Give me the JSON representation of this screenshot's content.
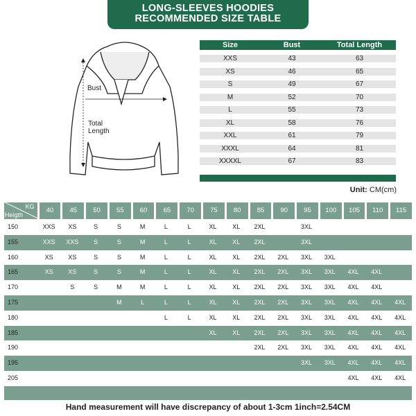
{
  "title": {
    "line1": "LONG-SLEEVES HOODIES",
    "line2": "RECOMMENDED SIZE TABLE"
  },
  "illustration": {
    "bust_label": "Bust",
    "length_label": "Total Length"
  },
  "size_table": {
    "headers": [
      "Size",
      "Bust",
      "Total Length"
    ],
    "rows": [
      [
        "XXS",
        "43",
        "63"
      ],
      [
        "XS",
        "46",
        "65"
      ],
      [
        "S",
        "49",
        "67"
      ],
      [
        "M",
        "52",
        "70"
      ],
      [
        "L",
        "55",
        "73"
      ],
      [
        "XL",
        "58",
        "76"
      ],
      [
        "XXL",
        "61",
        "79"
      ],
      [
        "XXXL",
        "64",
        "81"
      ],
      [
        "XXXXL",
        "67",
        "83"
      ]
    ]
  },
  "unit": {
    "label": "Unit:",
    "value": "CM(cm)"
  },
  "fit_table": {
    "kg_label": "KG",
    "height_label": "Heigth",
    "weights": [
      "40",
      "45",
      "50",
      "55",
      "60",
      "65",
      "70",
      "75",
      "80",
      "85",
      "90",
      "95",
      "100",
      "105",
      "110",
      "115"
    ],
    "rows": [
      {
        "height": "150",
        "sizes": [
          "XXS",
          "XS",
          "S",
          "S",
          "M",
          "L",
          "L",
          "XL",
          "XL",
          "2XL",
          "",
          "3XL",
          "",
          "",
          "",
          ""
        ]
      },
      {
        "height": "155",
        "sizes": [
          "XXS",
          "XXS",
          "S",
          "S",
          "M",
          "L",
          "L",
          "XL",
          "XL",
          "2XL",
          "",
          "3XL",
          "",
          "",
          "",
          ""
        ]
      },
      {
        "height": "160",
        "sizes": [
          "XS",
          "XS",
          "S",
          "S",
          "M",
          "L",
          "L",
          "XL",
          "XL",
          "2XL",
          "2XL",
          "3XL",
          "3XL",
          "",
          "",
          ""
        ]
      },
      {
        "height": "165",
        "sizes": [
          "XS",
          "XS",
          "S",
          "S",
          "M",
          "L",
          "L",
          "XL",
          "XL",
          "2XL",
          "2XL",
          "3XL",
          "3XL",
          "4XL",
          "4XL",
          ""
        ]
      },
      {
        "height": "170",
        "sizes": [
          "",
          "S",
          "S",
          "M",
          "M",
          "L",
          "L",
          "XL",
          "XL",
          "2XL",
          "2XL",
          "3XL",
          "3XL",
          "4XL",
          "4XL",
          ""
        ]
      },
      {
        "height": "175",
        "sizes": [
          "",
          "",
          "",
          "M",
          "L",
          "L",
          "L",
          "XL",
          "XL",
          "2XL",
          "2XL",
          "3XL",
          "3XL",
          "4XL",
          "4XL",
          "4XL"
        ]
      },
      {
        "height": "180",
        "sizes": [
          "",
          "",
          "",
          "",
          "",
          "L",
          "L",
          "XL",
          "XL",
          "2XL",
          "2XL",
          "3XL",
          "3XL",
          "4XL",
          "4XL",
          "4XL"
        ]
      },
      {
        "height": "185",
        "sizes": [
          "",
          "",
          "",
          "",
          "",
          "",
          "",
          "XL",
          "XL",
          "2XL",
          "2XL",
          "3XL",
          "3XL",
          "4XL",
          "4XL",
          "4XL"
        ]
      },
      {
        "height": "190",
        "sizes": [
          "",
          "",
          "",
          "",
          "",
          "",
          "",
          "",
          "",
          "2XL",
          "2XL",
          "3XL",
          "3XL",
          "4XL",
          "4XL",
          "4XL"
        ]
      },
      {
        "height": "195",
        "sizes": [
          "",
          "",
          "",
          "",
          "",
          "",
          "",
          "",
          "",
          "",
          "",
          "3XL",
          "3XL",
          "4XL",
          "4XL",
          "4XL"
        ]
      },
      {
        "height": "205",
        "sizes": [
          "",
          "",
          "",
          "",
          "",
          "",
          "",
          "",
          "",
          "",
          "",
          "",
          "",
          "4XL",
          "4XL",
          "4XL"
        ]
      }
    ]
  },
  "note": "Hand measurement will have discrepancy of about 1-3cm 1inch=2.54CM",
  "colors": {
    "dark_green": "#1f6b4b",
    "sage_green": "#7a9e8f",
    "row_gray": "#e4e4e4"
  }
}
